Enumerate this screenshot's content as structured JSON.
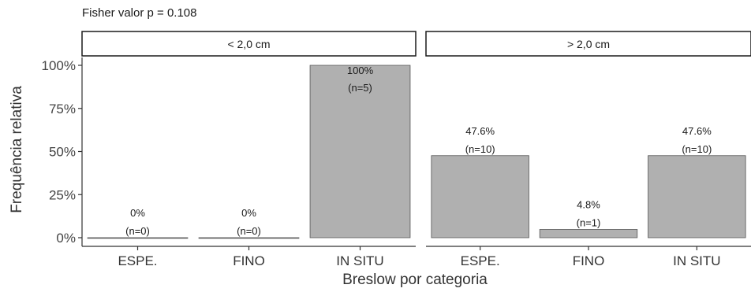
{
  "chart_data": {
    "type": "bar",
    "title": "Fisher valor p = 0.108",
    "xlabel": "Breslow por categoria",
    "ylabel": "Frequência relativa",
    "ylim": [
      0,
      1
    ],
    "yticks": [
      {
        "value": 0,
        "label": "0%"
      },
      {
        "value": 0.25,
        "label": "25%"
      },
      {
        "value": 0.5,
        "label": "50%"
      },
      {
        "value": 0.75,
        "label": "75%"
      },
      {
        "value": 1,
        "label": "100%"
      }
    ],
    "categories": [
      "ESPE.",
      "FINO",
      "IN SITU"
    ],
    "bar_color": "#b0b0b0",
    "grid": false,
    "facets": [
      {
        "label": "< 2,0 cm",
        "bars": [
          {
            "category": "ESPE.",
            "value": 0,
            "pct_label": "0%",
            "n_label": "(n=0)"
          },
          {
            "category": "FINO",
            "value": 0,
            "pct_label": "0%",
            "n_label": "(n=0)"
          },
          {
            "category": "IN SITU",
            "value": 1.0,
            "pct_label": "100%",
            "n_label": "(n=5)"
          }
        ]
      },
      {
        "label": "> 2,0 cm",
        "bars": [
          {
            "category": "ESPE.",
            "value": 0.476,
            "pct_label": "47.6%",
            "n_label": "(n=10)"
          },
          {
            "category": "FINO",
            "value": 0.048,
            "pct_label": "4.8%",
            "n_label": "(n=1)"
          },
          {
            "category": "IN SITU",
            "value": 0.476,
            "pct_label": "47.6%",
            "n_label": "(n=10)"
          }
        ]
      }
    ]
  }
}
